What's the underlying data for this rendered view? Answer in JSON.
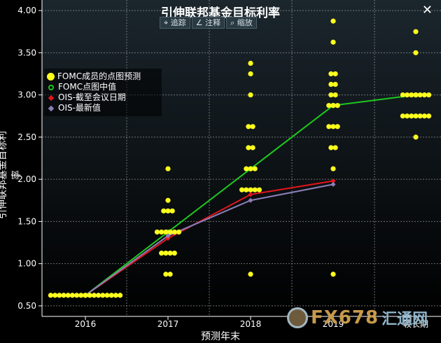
{
  "header": {
    "title": "引伸联邦基金目标利率",
    "close": "✕"
  },
  "toolbar": {
    "track": "追踪",
    "annotate": "注释",
    "zoom": "缩放",
    "track_icon": "crosshair-icon",
    "annotate_icon": "pencil-icon",
    "zoom_icon": "magnifier-icon"
  },
  "watermark": {
    "brand": "FX678",
    "cn": "汇通网"
  },
  "colors": {
    "background": "#000000",
    "plot_top": "#1b262d",
    "plot_bottom": "#000000",
    "dots": "#ffff1e",
    "median": "#1ec81e",
    "ois_meeting": "#e0151b",
    "ois_latest": "#8c7fb8",
    "grid": "#9a9a9a"
  },
  "chart_data": {
    "type": "scatter",
    "title": "引伸联邦基金目标利率",
    "xlabel": "预测年末",
    "ylabel": "引伸联邦基金目标利率",
    "categories": [
      "2016",
      "2017",
      "2018",
      "2019",
      "较长期"
    ],
    "ylim": [
      0.375,
      4.125
    ],
    "yticks": [
      "0.50",
      "1.00",
      "1.50",
      "2.00",
      "2.50",
      "3.00",
      "3.50",
      "4.00"
    ],
    "grid": true,
    "legend_position": "top-left",
    "series": [
      {
        "name": "FOMC成员的点图预测",
        "kind": "dots",
        "groups": [
          {
            "x": "2016",
            "levels": [
              {
                "y": 0.625,
                "count": 17
              }
            ]
          },
          {
            "x": "2017",
            "levels": [
              {
                "y": 0.875,
                "count": 2
              },
              {
                "y": 1.125,
                "count": 4
              },
              {
                "y": 1.375,
                "count": 6
              },
              {
                "y": 1.625,
                "count": 3
              },
              {
                "y": 1.75,
                "count": 1
              },
              {
                "y": 2.125,
                "count": 1
              }
            ]
          },
          {
            "x": "2018",
            "levels": [
              {
                "y": 0.875,
                "count": 1
              },
              {
                "y": 1.875,
                "count": 5
              },
              {
                "y": 2.125,
                "count": 3
              },
              {
                "y": 2.375,
                "count": 2
              },
              {
                "y": 2.625,
                "count": 2
              },
              {
                "y": 3.0,
                "count": 1
              },
              {
                "y": 3.25,
                "count": 1
              },
              {
                "y": 3.375,
                "count": 1
              }
            ]
          },
          {
            "x": "2019",
            "levels": [
              {
                "y": 0.875,
                "count": 1
              },
              {
                "y": 2.125,
                "count": 1
              },
              {
                "y": 2.375,
                "count": 2
              },
              {
                "y": 2.625,
                "count": 3
              },
              {
                "y": 2.875,
                "count": 3
              },
              {
                "y": 3.0,
                "count": 2
              },
              {
                "y": 3.125,
                "count": 2
              },
              {
                "y": 3.25,
                "count": 2
              },
              {
                "y": 3.625,
                "count": 1
              },
              {
                "y": 3.875,
                "count": 1
              }
            ]
          },
          {
            "x": "较长期",
            "levels": [
              {
                "y": 2.5,
                "count": 1
              },
              {
                "y": 2.75,
                "count": 7
              },
              {
                "y": 3.0,
                "count": 7
              },
              {
                "y": 3.5,
                "count": 1
              },
              {
                "y": 3.75,
                "count": 1
              }
            ]
          }
        ]
      },
      {
        "name": "FOMC点图中值",
        "kind": "line",
        "x": [
          "2016",
          "2017",
          "2018",
          "2019",
          "较长期"
        ],
        "values": [
          0.625,
          1.375,
          2.125,
          2.875,
          3.0
        ]
      },
      {
        "name": "OIS-截至会议日期",
        "kind": "line",
        "x": [
          "2016",
          "2017",
          "2018",
          "2019"
        ],
        "values": [
          0.625,
          1.3,
          1.82,
          1.98
        ]
      },
      {
        "name": "OIS-最新值",
        "kind": "line",
        "x": [
          "2016",
          "2017",
          "2018",
          "2019"
        ],
        "values": [
          0.625,
          1.33,
          1.75,
          1.94
        ]
      }
    ]
  }
}
